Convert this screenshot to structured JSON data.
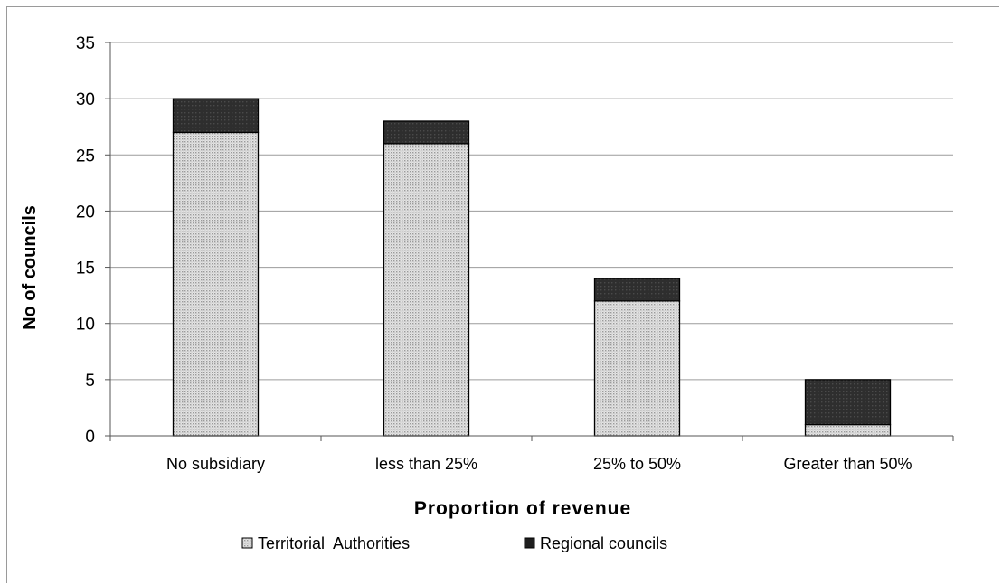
{
  "chart_data": {
    "type": "bar",
    "stacked": true,
    "title": "",
    "xlabel": "Proportion of revenue",
    "ylabel": "No of councils",
    "categories": [
      "No subsidiary",
      "less than 25%",
      "25% to 50%",
      "Greater than 50%"
    ],
    "series": [
      {
        "name": "Territorial  Authorities",
        "values": [
          27,
          26,
          12,
          1
        ],
        "color": "#d6d6d6",
        "pattern": "dotted"
      },
      {
        "name": "Regional councils",
        "values": [
          3,
          2,
          2,
          4
        ],
        "color": "#2f2f2f"
      }
    ],
    "ylim": [
      0,
      35
    ],
    "yticks": [
      0,
      5,
      10,
      15,
      20,
      25,
      30,
      35
    ],
    "grid": true,
    "legend_position": "bottom"
  }
}
